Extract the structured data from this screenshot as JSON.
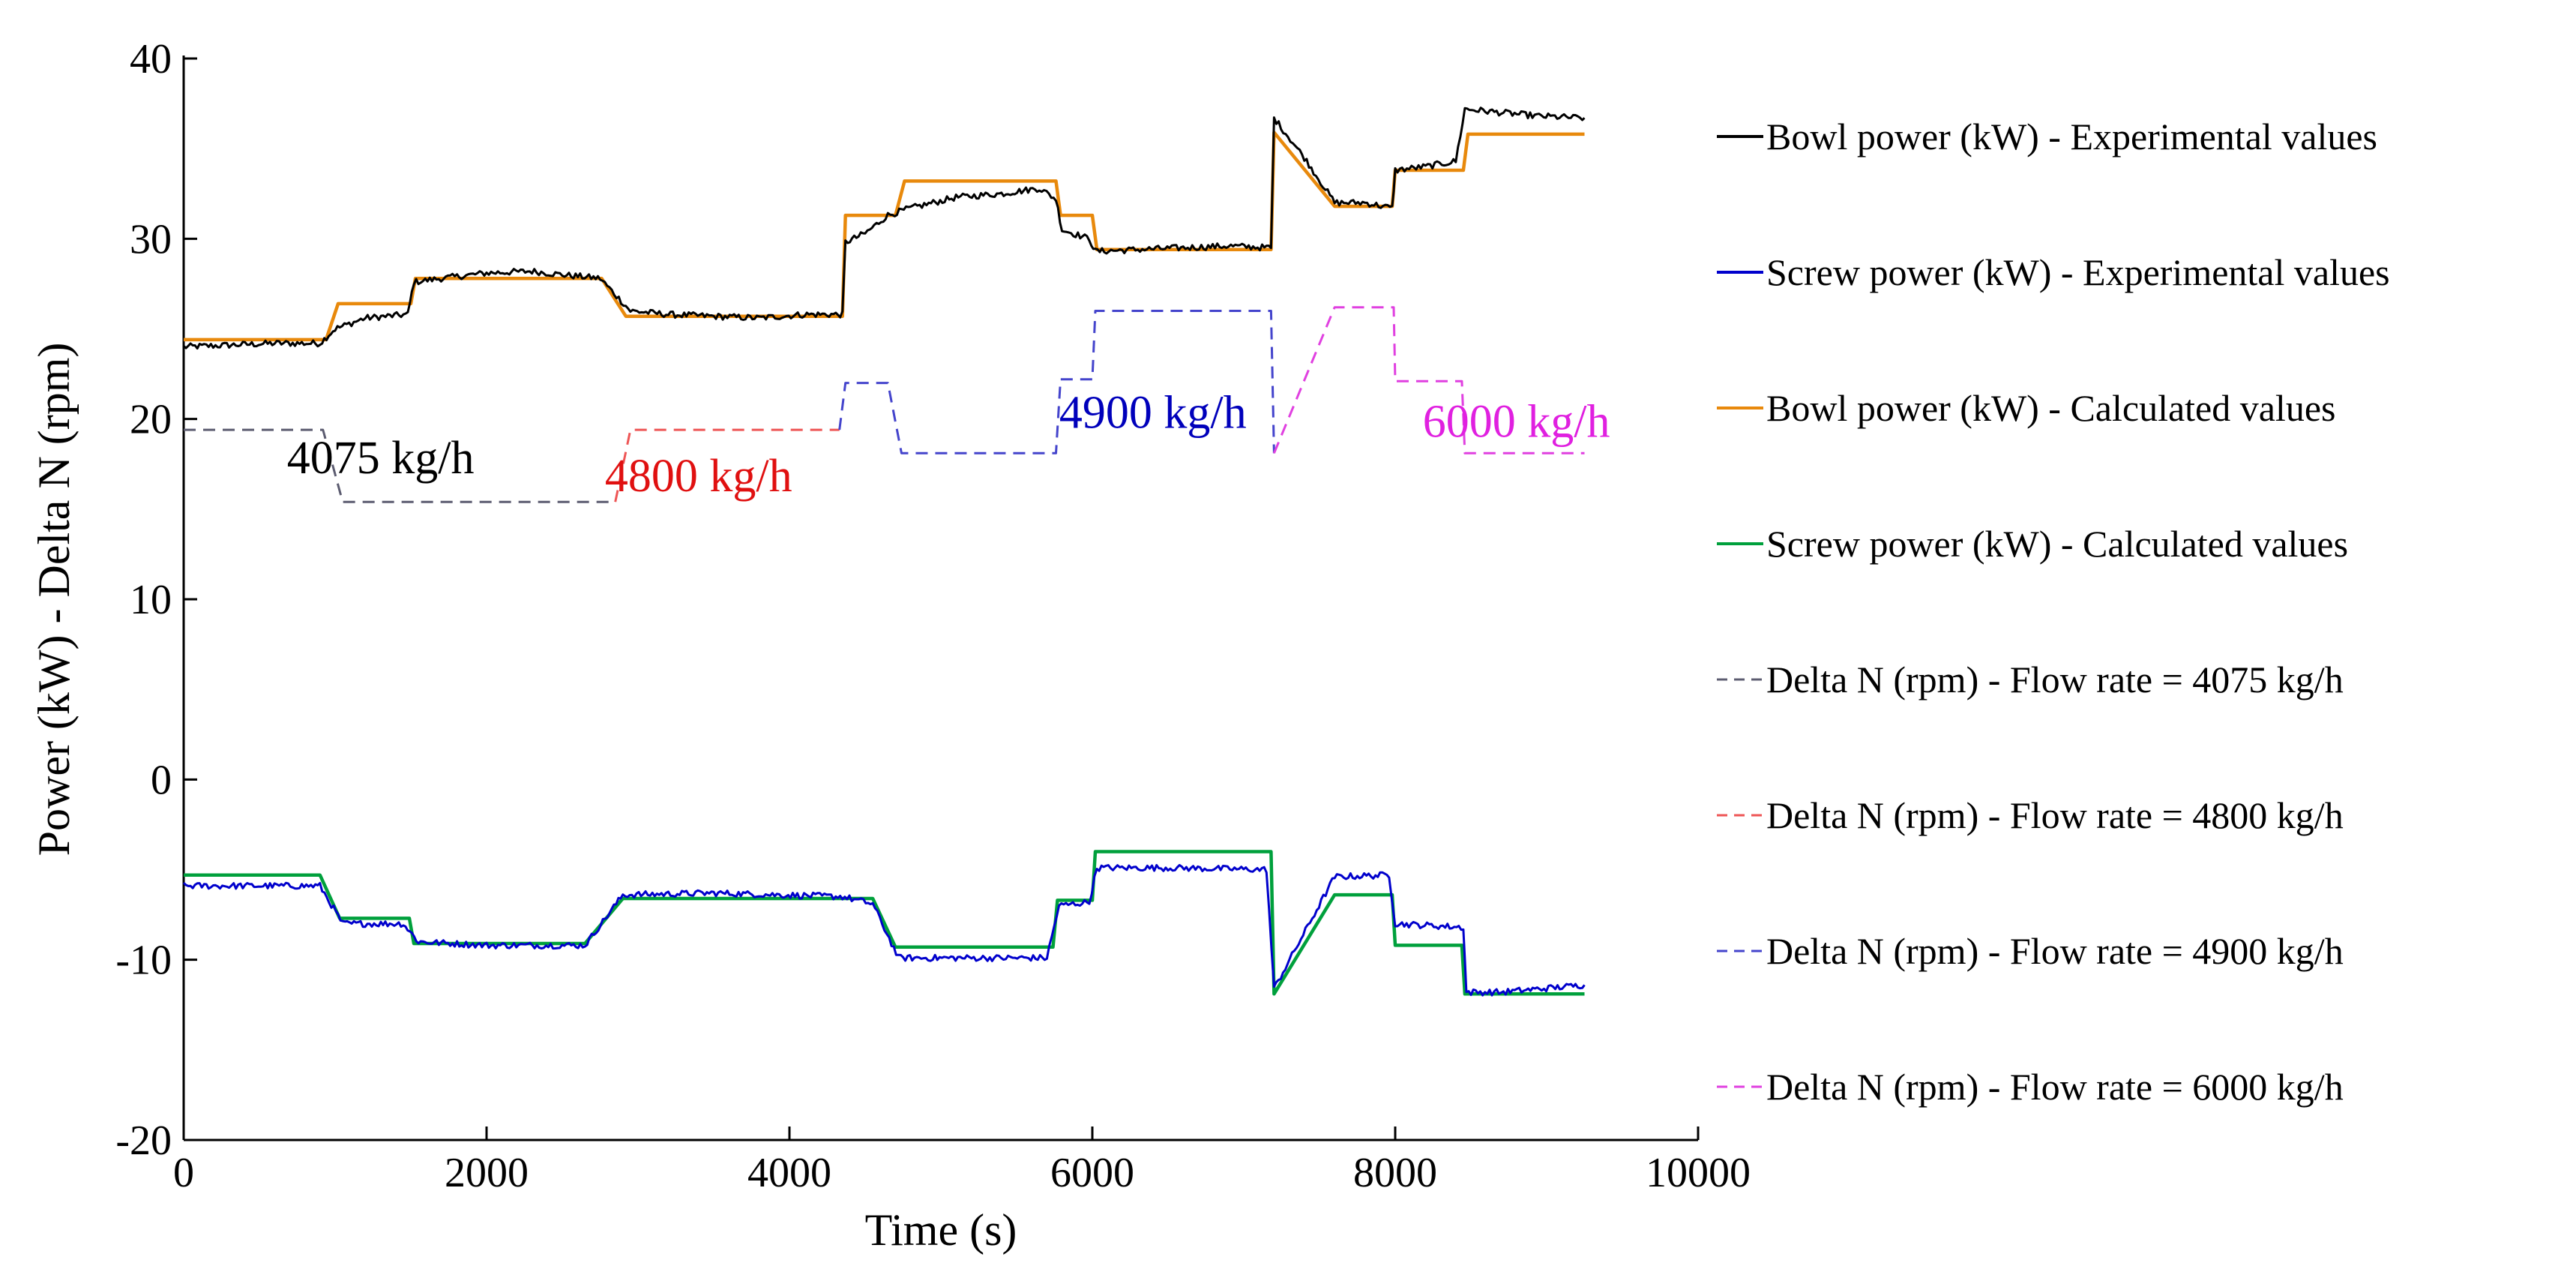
{
  "chart_data": {
    "type": "line",
    "title": "",
    "xlabel": "Time (s)",
    "ylabel": "Power (kW) - Delta N (rpm)",
    "xlim": [
      0,
      10000
    ],
    "ylim": [
      -20,
      40
    ],
    "x_ticks": [
      0,
      2000,
      4000,
      6000,
      8000,
      10000
    ],
    "x_tick_labels": [
      "0",
      "2000",
      "4000",
      "6000",
      "8000",
      "10000"
    ],
    "y_ticks": [
      -20,
      -10,
      0,
      10,
      20,
      30,
      40
    ],
    "y_tick_labels": [
      "-20",
      "-10",
      "0",
      "10",
      "20",
      "30",
      "40"
    ],
    "grid": false,
    "legend_position": "right",
    "series": [
      {
        "name": "Bowl power (kW) - Experimental values",
        "color": "#000000",
        "dash": "solid",
        "noise": true,
        "points": [
          [
            0,
            24.0
          ],
          [
            300,
            24.1
          ],
          [
            600,
            24.2
          ],
          [
            900,
            24.2
          ],
          [
            1000,
            25.0
          ],
          [
            1200,
            25.6
          ],
          [
            1480,
            25.8
          ],
          [
            1520,
            27.6
          ],
          [
            1700,
            27.8
          ],
          [
            2000,
            28.1
          ],
          [
            2300,
            28.2
          ],
          [
            2500,
            28.0
          ],
          [
            2750,
            27.8
          ],
          [
            2950,
            26.0
          ],
          [
            3200,
            25.8
          ],
          [
            3500,
            25.7
          ],
          [
            3800,
            25.6
          ],
          [
            4100,
            25.8
          ],
          [
            4350,
            25.8
          ],
          [
            4370,
            29.8
          ],
          [
            4500,
            30.3
          ],
          [
            4650,
            31.3
          ],
          [
            4800,
            31.7
          ],
          [
            5100,
            32.3
          ],
          [
            5400,
            32.5
          ],
          [
            5650,
            32.8
          ],
          [
            5760,
            32.2
          ],
          [
            5800,
            30.5
          ],
          [
            5980,
            30.0
          ],
          [
            6020,
            29.3
          ],
          [
            6300,
            29.4
          ],
          [
            6600,
            29.5
          ],
          [
            6900,
            29.6
          ],
          [
            7180,
            29.5
          ],
          [
            7200,
            36.7
          ],
          [
            7400,
            34.5
          ],
          [
            7600,
            32.0
          ],
          [
            7800,
            32.0
          ],
          [
            7980,
            31.7
          ],
          [
            8000,
            33.8
          ],
          [
            8200,
            34.0
          ],
          [
            8400,
            34.3
          ],
          [
            8460,
            37.2
          ],
          [
            8700,
            37.0
          ],
          [
            8950,
            36.8
          ],
          [
            9250,
            36.7
          ]
        ]
      },
      {
        "name": "Screw power (kW) - Experimental values",
        "color": "#0000cc",
        "dash": "solid",
        "noise": true,
        "points": [
          [
            0,
            -5.9
          ],
          [
            900,
            -5.9
          ],
          [
            1050,
            -8.0
          ],
          [
            1450,
            -8.0
          ],
          [
            1550,
            -9.0
          ],
          [
            2000,
            -9.2
          ],
          [
            2650,
            -9.2
          ],
          [
            2900,
            -6.4
          ],
          [
            3500,
            -6.3
          ],
          [
            4350,
            -6.5
          ],
          [
            4550,
            -6.9
          ],
          [
            4720,
            -9.9
          ],
          [
            5700,
            -9.9
          ],
          [
            5780,
            -7.0
          ],
          [
            5980,
            -6.8
          ],
          [
            6030,
            -4.9
          ],
          [
            6500,
            -4.9
          ],
          [
            7150,
            -5.0
          ],
          [
            7200,
            -11.6
          ],
          [
            7600,
            -5.4
          ],
          [
            7960,
            -5.3
          ],
          [
            8000,
            -8.0
          ],
          [
            8450,
            -8.2
          ],
          [
            8470,
            -11.8
          ],
          [
            8700,
            -11.8
          ],
          [
            9250,
            -11.4
          ]
        ]
      },
      {
        "name": "Bowl power (kW) - Calculated values",
        "color": "#e8890c",
        "dash": "solid",
        "noise": false,
        "points": [
          [
            0,
            24.4
          ],
          [
            940,
            24.4
          ],
          [
            1020,
            26.4
          ],
          [
            1500,
            26.4
          ],
          [
            1530,
            27.8
          ],
          [
            2760,
            27.8
          ],
          [
            2920,
            25.7
          ],
          [
            4350,
            25.7
          ],
          [
            4370,
            31.3
          ],
          [
            4700,
            31.3
          ],
          [
            4760,
            33.2
          ],
          [
            5760,
            33.2
          ],
          [
            5790,
            31.3
          ],
          [
            6000,
            31.3
          ],
          [
            6030,
            29.4
          ],
          [
            7180,
            29.4
          ],
          [
            7200,
            35.9
          ],
          [
            7600,
            31.8
          ],
          [
            7980,
            31.8
          ],
          [
            8000,
            33.8
          ],
          [
            8450,
            33.8
          ],
          [
            8480,
            35.8
          ],
          [
            9250,
            35.8
          ]
        ]
      },
      {
        "name": "Screw power (kW) - Calculated values",
        "color": "#00a03c",
        "dash": "solid",
        "noise": false,
        "points": [
          [
            0,
            -5.3
          ],
          [
            900,
            -5.3
          ],
          [
            1030,
            -7.7
          ],
          [
            1490,
            -7.7
          ],
          [
            1520,
            -9.1
          ],
          [
            2650,
            -9.1
          ],
          [
            2900,
            -6.6
          ],
          [
            4380,
            -6.6
          ],
          [
            4550,
            -6.6
          ],
          [
            4700,
            -9.3
          ],
          [
            5740,
            -9.3
          ],
          [
            5770,
            -6.7
          ],
          [
            6000,
            -6.7
          ],
          [
            6020,
            -4.0
          ],
          [
            7180,
            -4.0
          ],
          [
            7200,
            -11.9
          ],
          [
            7600,
            -6.4
          ],
          [
            7980,
            -6.4
          ],
          [
            8000,
            -9.2
          ],
          [
            8440,
            -9.2
          ],
          [
            8460,
            -11.9
          ],
          [
            9250,
            -11.9
          ]
        ]
      },
      {
        "name": "Delta N (rpm) - Flow rate = 4075 kg/h",
        "color": "#5c5c70",
        "dash": "dashed",
        "noise": false,
        "points": [
          [
            0,
            19.4
          ],
          [
            920,
            19.4
          ],
          [
            1050,
            15.4
          ],
          [
            2850,
            15.4
          ]
        ]
      },
      {
        "name": "Delta N (rpm) - Flow rate = 4800 kg/h",
        "color": "#ee5555",
        "dash": "dashed",
        "noise": false,
        "points": [
          [
            2850,
            15.4
          ],
          [
            2950,
            19.4
          ],
          [
            4330,
            19.4
          ]
        ]
      },
      {
        "name": "Delta N (rpm) - Flow rate = 4900 kg/h",
        "color": "#4444cc",
        "dash": "dashed",
        "noise": false,
        "points": [
          [
            4330,
            19.4
          ],
          [
            4370,
            22.0
          ],
          [
            4650,
            22.0
          ],
          [
            4740,
            18.1
          ],
          [
            5760,
            18.1
          ],
          [
            5790,
            22.2
          ],
          [
            6000,
            22.2
          ],
          [
            6020,
            26.0
          ],
          [
            7180,
            26.0
          ],
          [
            7200,
            18.1
          ]
        ]
      },
      {
        "name": "Delta N (rpm) - Flow rate = 6000 kg/h",
        "color": "#e040e0",
        "dash": "dashed",
        "noise": false,
        "points": [
          [
            7200,
            18.1
          ],
          [
            7600,
            26.2
          ],
          [
            7990,
            26.2
          ],
          [
            8000,
            22.1
          ],
          [
            8440,
            22.1
          ],
          [
            8460,
            18.1
          ],
          [
            9250,
            18.1
          ]
        ]
      }
    ],
    "annotations": [
      {
        "text": "4075 kg/h",
        "x": 1300,
        "y": 17.0,
        "color": "#000000"
      },
      {
        "text": "4800 kg/h",
        "x": 3400,
        "y": 16.0,
        "color": "#e01010"
      },
      {
        "text": "4900 kg/h",
        "x": 6400,
        "y": 19.5,
        "color": "#0000bb"
      },
      {
        "text": "6000 kg/h",
        "x": 8800,
        "y": 19.0,
        "color": "#e020e0"
      }
    ]
  }
}
